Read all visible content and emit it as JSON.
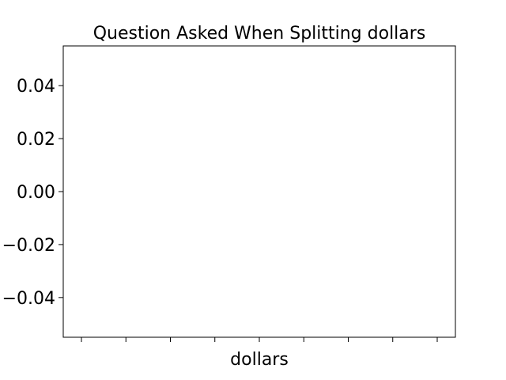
{
  "chart_data": {
    "type": "bar",
    "title": "Question Asked When Splitting dollars",
    "xlabel": "dollars",
    "ylabel": "",
    "categories": [
      "",
      "",
      "",
      "",
      "",
      "",
      "",
      "",
      ""
    ],
    "series": [],
    "ylim": [
      -0.055,
      0.055
    ],
    "yticks": [
      {
        "value": 0.04,
        "label": "0.04"
      },
      {
        "value": 0.02,
        "label": "0.02"
      },
      {
        "value": 0.0,
        "label": "0.00"
      },
      {
        "value": -0.02,
        "label": "−0.02"
      },
      {
        "value": -0.04,
        "label": "−0.04"
      }
    ],
    "grid": false,
    "legend": "none"
  }
}
